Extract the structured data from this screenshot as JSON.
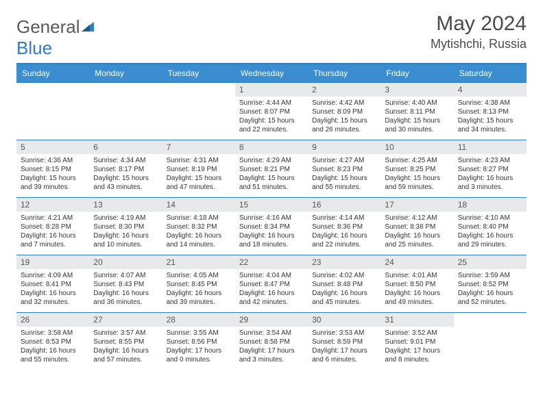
{
  "brand": {
    "name_part1": "General",
    "name_part2": "Blue"
  },
  "title": "May 2024",
  "location": "Mytishchi, Russia",
  "colors": {
    "header_bg": "#3a8dd0",
    "rule": "#2b7dc4",
    "daynum_bg": "#e8e9eb",
    "text": "#333333",
    "title_text": "#4a4a4a"
  },
  "weekdays": [
    "Sunday",
    "Monday",
    "Tuesday",
    "Wednesday",
    "Thursday",
    "Friday",
    "Saturday"
  ],
  "weeks": [
    [
      {
        "n": "",
        "lines": [
          "",
          "",
          ""
        ]
      },
      {
        "n": "",
        "lines": [
          "",
          "",
          ""
        ]
      },
      {
        "n": "",
        "lines": [
          "",
          "",
          ""
        ]
      },
      {
        "n": "1",
        "lines": [
          "Sunrise: 4:44 AM",
          "Sunset: 8:07 PM",
          "Daylight: 15 hours and 22 minutes."
        ]
      },
      {
        "n": "2",
        "lines": [
          "Sunrise: 4:42 AM",
          "Sunset: 8:09 PM",
          "Daylight: 15 hours and 26 minutes."
        ]
      },
      {
        "n": "3",
        "lines": [
          "Sunrise: 4:40 AM",
          "Sunset: 8:11 PM",
          "Daylight: 15 hours and 30 minutes."
        ]
      },
      {
        "n": "4",
        "lines": [
          "Sunrise: 4:38 AM",
          "Sunset: 8:13 PM",
          "Daylight: 15 hours and 34 minutes."
        ]
      }
    ],
    [
      {
        "n": "5",
        "lines": [
          "Sunrise: 4:36 AM",
          "Sunset: 8:15 PM",
          "Daylight: 15 hours and 39 minutes."
        ]
      },
      {
        "n": "6",
        "lines": [
          "Sunrise: 4:34 AM",
          "Sunset: 8:17 PM",
          "Daylight: 15 hours and 43 minutes."
        ]
      },
      {
        "n": "7",
        "lines": [
          "Sunrise: 4:31 AM",
          "Sunset: 8:19 PM",
          "Daylight: 15 hours and 47 minutes."
        ]
      },
      {
        "n": "8",
        "lines": [
          "Sunrise: 4:29 AM",
          "Sunset: 8:21 PM",
          "Daylight: 15 hours and 51 minutes."
        ]
      },
      {
        "n": "9",
        "lines": [
          "Sunrise: 4:27 AM",
          "Sunset: 8:23 PM",
          "Daylight: 15 hours and 55 minutes."
        ]
      },
      {
        "n": "10",
        "lines": [
          "Sunrise: 4:25 AM",
          "Sunset: 8:25 PM",
          "Daylight: 15 hours and 59 minutes."
        ]
      },
      {
        "n": "11",
        "lines": [
          "Sunrise: 4:23 AM",
          "Sunset: 8:27 PM",
          "Daylight: 16 hours and 3 minutes."
        ]
      }
    ],
    [
      {
        "n": "12",
        "lines": [
          "Sunrise: 4:21 AM",
          "Sunset: 8:28 PM",
          "Daylight: 16 hours and 7 minutes."
        ]
      },
      {
        "n": "13",
        "lines": [
          "Sunrise: 4:19 AM",
          "Sunset: 8:30 PM",
          "Daylight: 16 hours and 10 minutes."
        ]
      },
      {
        "n": "14",
        "lines": [
          "Sunrise: 4:18 AM",
          "Sunset: 8:32 PM",
          "Daylight: 16 hours and 14 minutes."
        ]
      },
      {
        "n": "15",
        "lines": [
          "Sunrise: 4:16 AM",
          "Sunset: 8:34 PM",
          "Daylight: 16 hours and 18 minutes."
        ]
      },
      {
        "n": "16",
        "lines": [
          "Sunrise: 4:14 AM",
          "Sunset: 8:36 PM",
          "Daylight: 16 hours and 22 minutes."
        ]
      },
      {
        "n": "17",
        "lines": [
          "Sunrise: 4:12 AM",
          "Sunset: 8:38 PM",
          "Daylight: 16 hours and 25 minutes."
        ]
      },
      {
        "n": "18",
        "lines": [
          "Sunrise: 4:10 AM",
          "Sunset: 8:40 PM",
          "Daylight: 16 hours and 29 minutes."
        ]
      }
    ],
    [
      {
        "n": "19",
        "lines": [
          "Sunrise: 4:09 AM",
          "Sunset: 8:41 PM",
          "Daylight: 16 hours and 32 minutes."
        ]
      },
      {
        "n": "20",
        "lines": [
          "Sunrise: 4:07 AM",
          "Sunset: 8:43 PM",
          "Daylight: 16 hours and 36 minutes."
        ]
      },
      {
        "n": "21",
        "lines": [
          "Sunrise: 4:05 AM",
          "Sunset: 8:45 PM",
          "Daylight: 16 hours and 39 minutes."
        ]
      },
      {
        "n": "22",
        "lines": [
          "Sunrise: 4:04 AM",
          "Sunset: 8:47 PM",
          "Daylight: 16 hours and 42 minutes."
        ]
      },
      {
        "n": "23",
        "lines": [
          "Sunrise: 4:02 AM",
          "Sunset: 8:48 PM",
          "Daylight: 16 hours and 45 minutes."
        ]
      },
      {
        "n": "24",
        "lines": [
          "Sunrise: 4:01 AM",
          "Sunset: 8:50 PM",
          "Daylight: 16 hours and 49 minutes."
        ]
      },
      {
        "n": "25",
        "lines": [
          "Sunrise: 3:59 AM",
          "Sunset: 8:52 PM",
          "Daylight: 16 hours and 52 minutes."
        ]
      }
    ],
    [
      {
        "n": "26",
        "lines": [
          "Sunrise: 3:58 AM",
          "Sunset: 8:53 PM",
          "Daylight: 16 hours and 55 minutes."
        ]
      },
      {
        "n": "27",
        "lines": [
          "Sunrise: 3:57 AM",
          "Sunset: 8:55 PM",
          "Daylight: 16 hours and 57 minutes."
        ]
      },
      {
        "n": "28",
        "lines": [
          "Sunrise: 3:55 AM",
          "Sunset: 8:56 PM",
          "Daylight: 17 hours and 0 minutes."
        ]
      },
      {
        "n": "29",
        "lines": [
          "Sunrise: 3:54 AM",
          "Sunset: 8:58 PM",
          "Daylight: 17 hours and 3 minutes."
        ]
      },
      {
        "n": "30",
        "lines": [
          "Sunrise: 3:53 AM",
          "Sunset: 8:59 PM",
          "Daylight: 17 hours and 6 minutes."
        ]
      },
      {
        "n": "31",
        "lines": [
          "Sunrise: 3:52 AM",
          "Sunset: 9:01 PM",
          "Daylight: 17 hours and 8 minutes."
        ]
      },
      {
        "n": "",
        "lines": [
          "",
          "",
          ""
        ]
      }
    ]
  ]
}
